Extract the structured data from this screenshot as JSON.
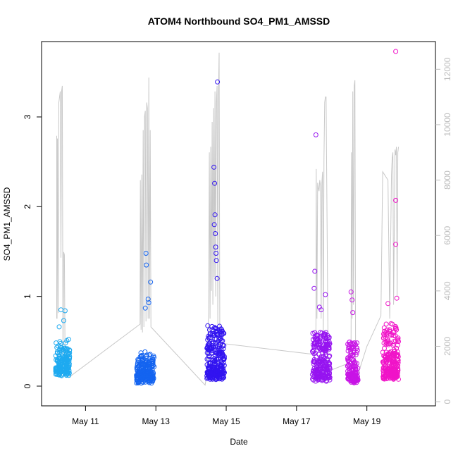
{
  "chart_data": {
    "type": "scatter",
    "title": "ATOM4 Northbound SO4_PM1_AMSSD",
    "xlabel": "Date",
    "ylabel": "SO4_PM1_AMSSD",
    "x_unit": "day of May",
    "xlim": [
      9.75,
      20.95
    ],
    "ylim": [
      -0.22,
      3.84
    ],
    "y2lim": [
      -150,
      13000
    ],
    "x_ticks": [
      11,
      13,
      15,
      17,
      19
    ],
    "x_tick_labels": [
      "May 11",
      "May 13",
      "May 15",
      "May 17",
      "May 19"
    ],
    "y_ticks": [
      0,
      1,
      2,
      3
    ],
    "y_tick_labels": [
      "0",
      "1",
      "2",
      "3"
    ],
    "y2_ticks": [
      0,
      2000,
      4000,
      6000,
      8000,
      10000,
      12000
    ],
    "y2_tick_labels": [
      "0",
      "2000",
      "4000",
      "6000",
      "8000",
      "10000",
      "12000"
    ],
    "points_style": "open circles, color ramp light blue to blue to purple to magenta by time",
    "clusters": [
      {
        "x_start": 10.15,
        "x_end": 10.55,
        "color": "#1eaaf0",
        "n": 170,
        "base": 0.16,
        "spread": 0.18,
        "outliers": [
          [
            10.3,
            0.85
          ],
          [
            10.42,
            0.84
          ],
          [
            10.38,
            0.73
          ],
          [
            10.25,
            0.66
          ]
        ]
      },
      {
        "x_start": 12.45,
        "x_end": 12.95,
        "color": "#1464f0",
        "n": 230,
        "base": 0.08,
        "spread": 0.14,
        "outliers": [
          [
            12.72,
            1.48
          ],
          [
            12.73,
            1.35
          ],
          [
            12.85,
            1.16
          ],
          [
            12.78,
            0.97
          ],
          [
            12.8,
            0.93
          ],
          [
            12.7,
            0.87
          ]
        ]
      },
      {
        "x_start": 14.45,
        "x_end": 14.95,
        "color": "#3214f0",
        "n": 280,
        "base": 0.12,
        "spread": 0.28,
        "outliers": [
          [
            14.75,
            3.39
          ],
          [
            14.65,
            2.44
          ],
          [
            14.67,
            2.26
          ],
          [
            14.68,
            1.91
          ],
          [
            14.66,
            1.8
          ],
          [
            14.69,
            1.7
          ],
          [
            14.7,
            1.55
          ],
          [
            14.71,
            1.48
          ],
          [
            14.72,
            1.4
          ],
          [
            14.74,
            1.2
          ]
        ]
      },
      {
        "x_start": 17.45,
        "x_end": 17.95,
        "color": "#9614f0",
        "n": 260,
        "base": 0.1,
        "spread": 0.25,
        "outliers": [
          [
            17.55,
            2.8
          ],
          [
            17.52,
            1.28
          ],
          [
            17.5,
            1.09
          ],
          [
            17.82,
            1.02
          ],
          [
            17.65,
            0.88
          ],
          [
            17.7,
            0.85
          ]
        ]
      },
      {
        "x_start": 18.45,
        "x_end": 18.75,
        "color": "#c814e6",
        "n": 150,
        "base": 0.08,
        "spread": 0.22,
        "outliers": [
          [
            18.55,
            1.05
          ],
          [
            18.58,
            0.96
          ],
          [
            18.6,
            0.82
          ]
        ]
      },
      {
        "x_start": 19.45,
        "x_end": 19.9,
        "color": "#f014c8",
        "n": 240,
        "base": 0.12,
        "spread": 0.28,
        "outliers": [
          [
            19.82,
            3.73
          ],
          [
            19.82,
            2.07
          ],
          [
            19.82,
            1.58
          ],
          [
            19.6,
            0.92
          ],
          [
            19.85,
            0.98
          ]
        ]
      }
    ],
    "gray_line": {
      "series_axis": "right",
      "color": "#c8c8c8",
      "points": [
        [
          10.18,
          3000
        ],
        [
          10.18,
          9600
        ],
        [
          10.19,
          3000
        ],
        [
          10.2,
          9500
        ],
        [
          10.22,
          3200
        ],
        [
          10.24,
          10800
        ],
        [
          10.26,
          11000
        ],
        [
          10.28,
          11200
        ],
        [
          10.3,
          5200
        ],
        [
          10.32,
          11200
        ],
        [
          10.34,
          11400
        ],
        [
          10.36,
          1500
        ],
        [
          10.38,
          5400
        ],
        [
          10.4,
          5300
        ],
        [
          10.42,
          1200
        ],
        [
          10.55,
          900
        ],
        [
          12.55,
          2800
        ],
        [
          12.56,
          8000
        ],
        [
          12.58,
          2600
        ],
        [
          12.6,
          8200
        ],
        [
          12.62,
          2500
        ],
        [
          12.64,
          9800
        ],
        [
          12.66,
          2700
        ],
        [
          12.68,
          10300
        ],
        [
          12.7,
          10500
        ],
        [
          12.72,
          2900
        ],
        [
          12.74,
          10800
        ],
        [
          12.76,
          10600
        ],
        [
          12.78,
          3000
        ],
        [
          12.8,
          11700
        ],
        [
          12.82,
          3000
        ],
        [
          12.84,
          9800
        ],
        [
          12.86,
          2700
        ],
        [
          14.4,
          600
        ],
        [
          14.45,
          1000
        ],
        [
          14.5,
          3200
        ],
        [
          14.52,
          9000
        ],
        [
          14.54,
          3000
        ],
        [
          14.56,
          9200
        ],
        [
          14.58,
          4000
        ],
        [
          14.6,
          10100
        ],
        [
          14.62,
          3500
        ],
        [
          14.64,
          10600
        ],
        [
          14.66,
          4500
        ],
        [
          14.68,
          11200
        ],
        [
          14.7,
          3800
        ],
        [
          14.72,
          10800
        ],
        [
          14.74,
          11400
        ],
        [
          14.76,
          2800
        ],
        [
          14.78,
          11100
        ],
        [
          14.8,
          12600
        ],
        [
          14.82,
          2000
        ],
        [
          14.9,
          2100
        ],
        [
          17.55,
          1700
        ],
        [
          17.56,
          8400
        ],
        [
          17.58,
          3000
        ],
        [
          17.6,
          7900
        ],
        [
          17.62,
          7700
        ],
        [
          17.64,
          7600
        ],
        [
          17.66,
          8000
        ],
        [
          17.68,
          7800
        ],
        [
          17.7,
          3000
        ],
        [
          17.72,
          7900
        ],
        [
          17.74,
          8300
        ],
        [
          17.76,
          2400
        ],
        [
          17.78,
          8800
        ],
        [
          17.8,
          10800
        ],
        [
          17.82,
          11000
        ],
        [
          17.84,
          11000
        ],
        [
          17.9,
          1100
        ],
        [
          18.5,
          1400
        ],
        [
          18.55,
          1600
        ],
        [
          18.56,
          9000
        ],
        [
          18.58,
          3000
        ],
        [
          18.6,
          11200
        ],
        [
          18.62,
          3500
        ],
        [
          18.64,
          11400
        ],
        [
          18.66,
          11600
        ],
        [
          18.68,
          1200
        ],
        [
          18.75,
          1000
        ],
        [
          19.0,
          2000
        ],
        [
          19.4,
          3100
        ],
        [
          19.45,
          8300
        ],
        [
          19.5,
          8200
        ],
        [
          19.55,
          8100
        ],
        [
          19.6,
          8000
        ],
        [
          19.65,
          3000
        ],
        [
          19.7,
          8200
        ],
        [
          19.72,
          8800
        ],
        [
          19.74,
          9000
        ],
        [
          19.76,
          3500
        ],
        [
          19.8,
          9100
        ],
        [
          19.82,
          8900
        ],
        [
          19.84,
          9200
        ],
        [
          19.86,
          3800
        ],
        [
          19.88,
          9000
        ],
        [
          19.9,
          9200
        ]
      ]
    }
  }
}
